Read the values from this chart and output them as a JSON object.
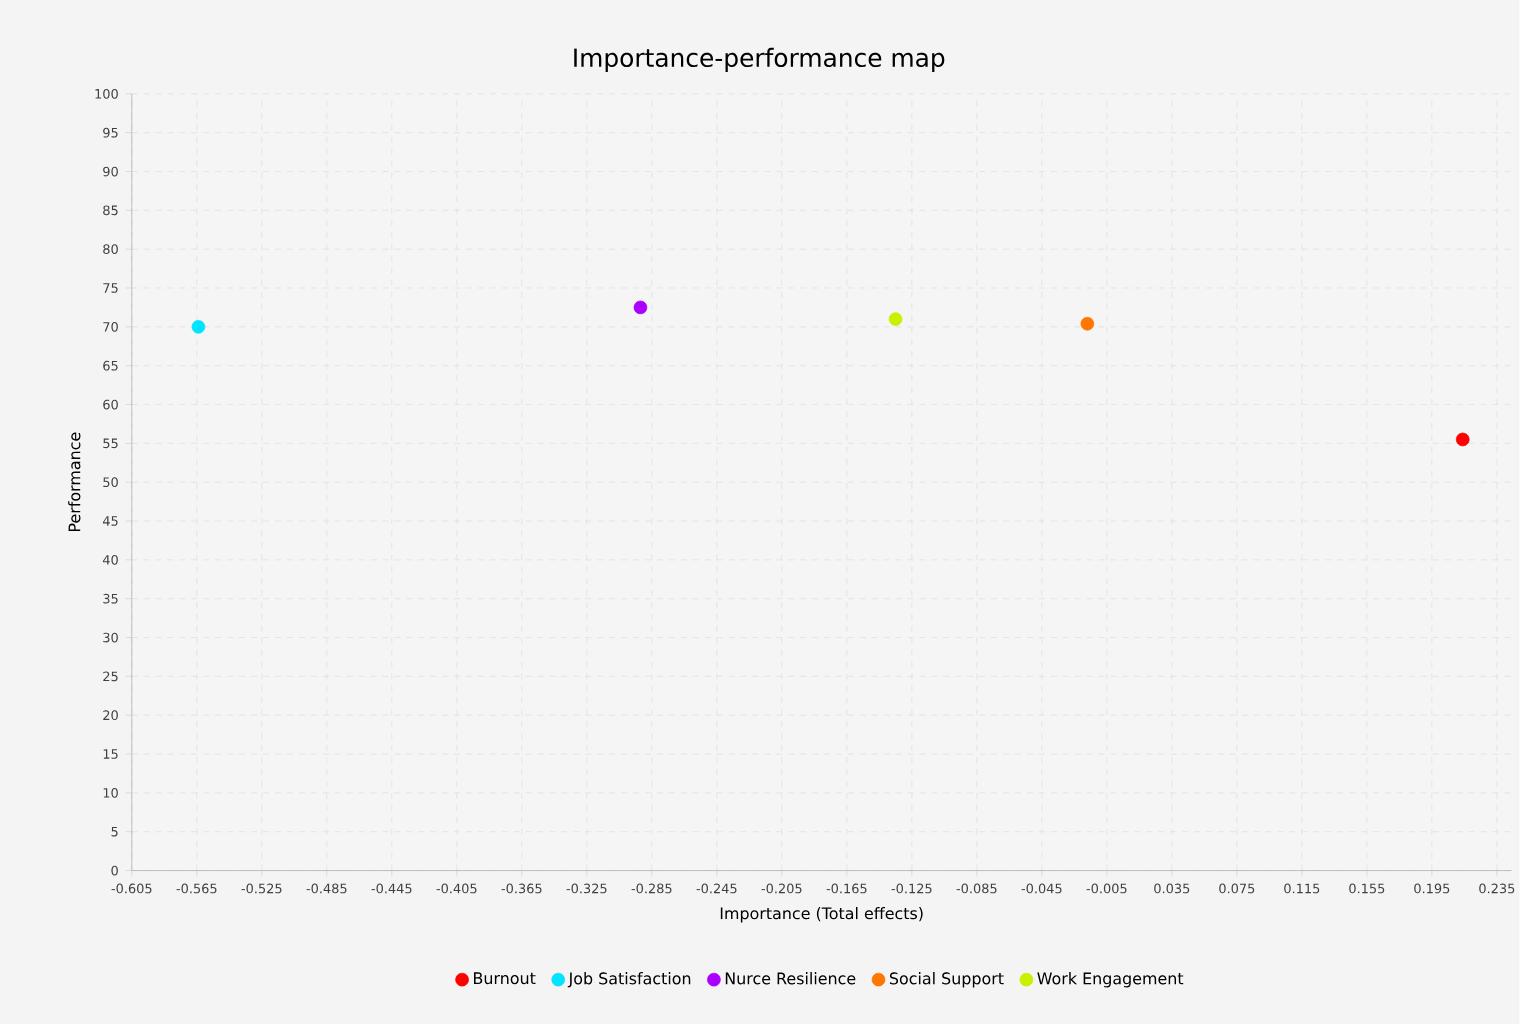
{
  "chart_data": {
    "type": "scatter",
    "title": "Importance-performance map",
    "xlabel": "Importance (Total effects)",
    "ylabel": "Performance",
    "series": [
      {
        "name": "Burnout",
        "color": "#ff0000",
        "x": [
          0.214
        ],
        "values": [
          55.5
        ]
      },
      {
        "name": "Job Satisfaction",
        "color": "#00e5ff",
        "x": [
          -0.564
        ],
        "values": [
          70
        ]
      },
      {
        "name": "Nurce Resilience",
        "color": "#aa00ff",
        "x": [
          -0.292
        ],
        "values": [
          72.5
        ]
      },
      {
        "name": "Social Support",
        "color": "#ff7700",
        "x": [
          -0.017
        ],
        "values": [
          70.4
        ]
      },
      {
        "name": "Work Engagement",
        "color": "#c8f000",
        "x": [
          -0.135
        ],
        "values": [
          71
        ]
      }
    ],
    "xlim": [
      -0.605,
      0.244
    ],
    "xticks": [
      -0.605,
      -0.565,
      -0.525,
      -0.485,
      -0.445,
      -0.405,
      -0.365,
      -0.325,
      -0.285,
      -0.245,
      -0.205,
      -0.165,
      -0.125,
      -0.085,
      -0.045,
      -0.005,
      0.035,
      0.075,
      0.115,
      0.155,
      0.195,
      0.235
    ],
    "ylim": [
      0,
      100
    ],
    "yticks": [
      0,
      5,
      10,
      15,
      20,
      25,
      30,
      35,
      40,
      45,
      50,
      55,
      60,
      65,
      70,
      75,
      80,
      85,
      90,
      95,
      100
    ],
    "grid": true,
    "legend": "bottom"
  }
}
